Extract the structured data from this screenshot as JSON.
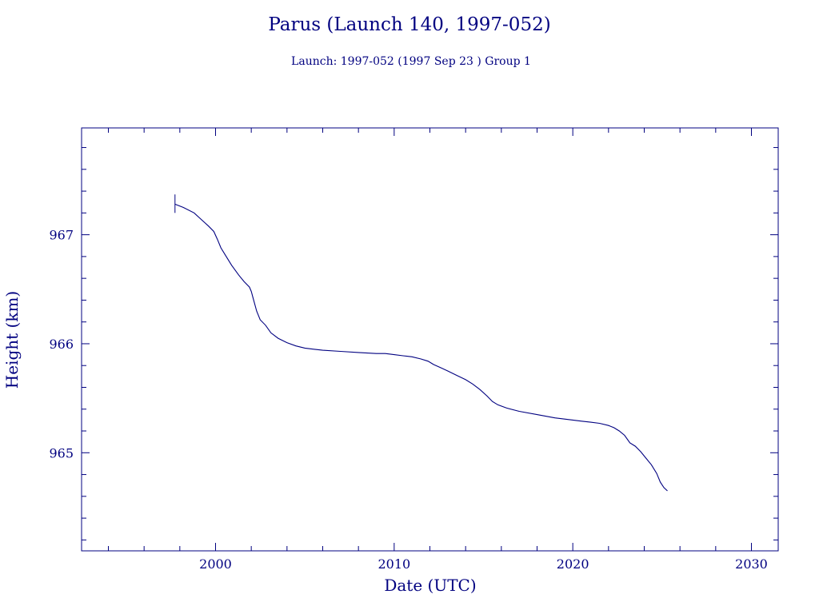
{
  "chart_data": {
    "type": "line",
    "title": "Parus (Launch 140, 1997-052)",
    "subtitle": "Launch: 1997-052  (1997 Sep 23 )  Group 1",
    "xlabel": "Date (UTC)",
    "ylabel": "Height (km)",
    "xlim": [
      1992.5,
      2031.5
    ],
    "ylim": [
      964.1,
      967.98
    ],
    "x_ticks": [
      2000,
      2010,
      2020,
      2030
    ],
    "x_tick_labels": [
      "2000",
      "2010",
      "2020",
      "2030"
    ],
    "y_ticks": [
      965,
      966,
      967
    ],
    "y_tick_labels": [
      "965",
      "966",
      "967"
    ],
    "grid": false,
    "color": "#000080",
    "launch_marker": {
      "x": 1997.73,
      "y_range": [
        967.2,
        967.37
      ]
    },
    "series": [
      {
        "x": [
          1997.73,
          1998.2,
          1998.8,
          1999.2,
          1999.6,
          1999.9,
          2000.1,
          2000.3,
          2000.6,
          2000.9,
          2001.3,
          2001.6,
          2001.9,
          2002.0,
          2002.1,
          2002.3,
          2002.5,
          2002.8,
          2003.1,
          2003.5,
          2004.0,
          2004.5,
          2005.0,
          2005.5,
          2006.0,
          2007.0,
          2008.0,
          2009.0,
          2009.5,
          2010.0,
          2010.5,
          2011.0,
          2011.5,
          2011.9,
          2012.2,
          2012.6,
          2013.0,
          2013.5,
          2014.0,
          2014.4,
          2014.8,
          2015.2,
          2015.5,
          2015.8,
          2016.3,
          2017.0,
          2018.0,
          2019.0,
          2020.0,
          2020.5,
          2021.0,
          2021.5,
          2022.0,
          2022.3,
          2022.6,
          2022.9,
          2023.2,
          2023.5,
          2023.8,
          2024.1,
          2024.4,
          2024.7,
          2024.9,
          2025.1,
          2025.3
        ],
        "y": [
          967.28,
          967.25,
          967.2,
          967.14,
          967.08,
          967.03,
          966.96,
          966.88,
          966.8,
          966.72,
          966.63,
          966.57,
          966.52,
          966.48,
          966.42,
          966.3,
          966.22,
          966.17,
          966.1,
          966.05,
          966.01,
          965.98,
          965.96,
          965.95,
          965.94,
          965.93,
          965.92,
          965.91,
          965.91,
          965.9,
          965.89,
          965.88,
          965.86,
          965.84,
          965.81,
          965.78,
          965.75,
          965.71,
          965.67,
          965.63,
          965.58,
          965.52,
          965.47,
          965.44,
          965.41,
          965.38,
          965.35,
          965.32,
          965.3,
          965.29,
          965.28,
          965.27,
          965.25,
          965.23,
          965.2,
          965.16,
          965.09,
          965.06,
          965.01,
          964.95,
          964.89,
          964.81,
          964.73,
          964.68,
          964.65
        ]
      }
    ]
  }
}
